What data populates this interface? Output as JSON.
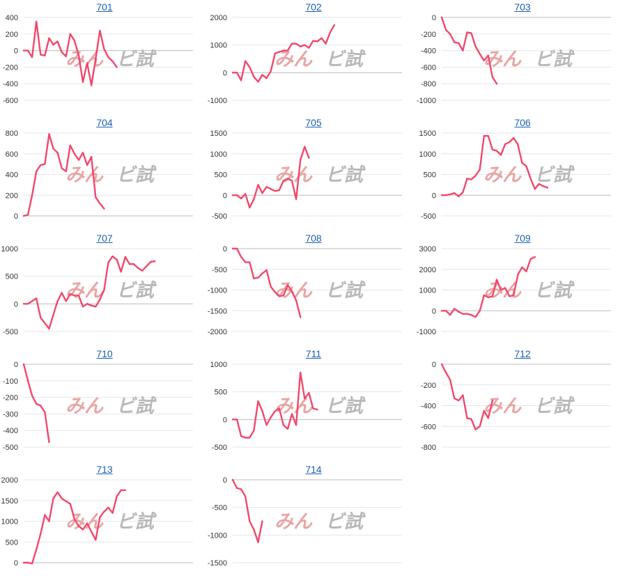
{
  "watermark": {
    "part1": "みん",
    "part2": "ビ試"
  },
  "colors": {
    "line": "#f2476a",
    "title": "#1a5fb4",
    "axis": "#bbbbbb",
    "grid": "#e6e6e6"
  },
  "chart_data": [
    {
      "title": "701",
      "type": "line",
      "ylim": [
        -600,
        400
      ],
      "yticks": [
        400,
        200,
        0,
        -200,
        -400,
        -600
      ],
      "y": [
        0,
        0,
        -80,
        350,
        -50,
        -60,
        150,
        70,
        110,
        -20,
        -70,
        200,
        120,
        -60,
        -380,
        -150,
        -420,
        -100,
        240,
        20,
        -80,
        -130,
        -200
      ]
    },
    {
      "title": "702",
      "type": "line",
      "ylim": [
        -1000,
        2000
      ],
      "yticks": [
        2000,
        1000,
        0,
        -1000
      ],
      "y": [
        0,
        0,
        -280,
        420,
        200,
        -150,
        -330,
        -80,
        -200,
        50,
        700,
        750,
        800,
        800,
        1050,
        1050,
        950,
        1000,
        900,
        1150,
        1130,
        1250,
        1050,
        1450,
        1720
      ]
    },
    {
      "title": "703",
      "type": "line",
      "ylim": [
        -1000,
        0
      ],
      "yticks": [
        0,
        -200,
        -400,
        -600,
        -800,
        -1000
      ],
      "y": [
        0,
        -150,
        -200,
        -300,
        -310,
        -400,
        -180,
        -190,
        -350,
        -440,
        -520,
        -460,
        -720,
        -800
      ]
    },
    {
      "title": "704",
      "type": "line",
      "ylim": [
        0,
        800
      ],
      "yticks": [
        800,
        600,
        400,
        200,
        0
      ],
      "y": [
        0,
        10,
        200,
        430,
        490,
        500,
        790,
        650,
        610,
        460,
        430,
        680,
        600,
        540,
        610,
        490,
        570,
        180,
        120,
        70
      ]
    },
    {
      "title": "705",
      "type": "line",
      "ylim": [
        -500,
        1500
      ],
      "yticks": [
        1500,
        1000,
        500,
        0,
        -500
      ],
      "y": [
        0,
        0,
        -80,
        30,
        -300,
        -100,
        250,
        50,
        200,
        150,
        100,
        120,
        350,
        400,
        350,
        -100,
        850,
        1170,
        900
      ]
    },
    {
      "title": "706",
      "type": "line",
      "ylim": [
        -500,
        1500
      ],
      "yticks": [
        1500,
        1000,
        500,
        0,
        -500
      ],
      "y": [
        0,
        0,
        20,
        50,
        -30,
        70,
        400,
        380,
        470,
        620,
        1430,
        1430,
        1100,
        1070,
        970,
        1230,
        1280,
        1380,
        1220,
        780,
        700,
        400,
        150,
        270,
        220,
        180
      ]
    },
    {
      "title": "707",
      "type": "line",
      "ylim": [
        -500,
        1000
      ],
      "yticks": [
        1000,
        500,
        0,
        -500
      ],
      "y": [
        0,
        0,
        50,
        100,
        -250,
        -350,
        -450,
        -200,
        50,
        200,
        50,
        180,
        150,
        150,
        -50,
        0,
        -30,
        -50,
        80,
        250,
        750,
        860,
        800,
        580,
        850,
        720,
        720,
        650,
        600,
        680,
        760,
        770
      ]
    },
    {
      "title": "708",
      "type": "line",
      "ylim": [
        -2000,
        0
      ],
      "yticks": [
        0,
        -500,
        -1000,
        -1500,
        -2000
      ],
      "y": [
        0,
        0,
        -200,
        -330,
        -330,
        -720,
        -700,
        -600,
        -520,
        -920,
        -1050,
        -1150,
        -1130,
        -880,
        -1030,
        -1250,
        -1650
      ]
    },
    {
      "title": "709",
      "type": "line",
      "ylim": [
        -1000,
        3000
      ],
      "yticks": [
        3000,
        2000,
        1000,
        0,
        -1000
      ],
      "y": [
        0,
        0,
        -200,
        100,
        -50,
        -150,
        -150,
        -200,
        -300,
        0,
        750,
        650,
        700,
        1500,
        1000,
        1100,
        700,
        750,
        1750,
        2100,
        1900,
        2500,
        2600
      ]
    },
    {
      "title": "710",
      "type": "line",
      "ylim": [
        -500,
        0
      ],
      "yticks": [
        0,
        -100,
        -200,
        -300,
        -400,
        -500
      ],
      "y": [
        0,
        -100,
        -190,
        -240,
        -250,
        -290,
        -470
      ]
    },
    {
      "title": "711",
      "type": "line",
      "ylim": [
        -500,
        1000
      ],
      "yticks": [
        1000,
        500,
        0,
        -500
      ],
      "y": [
        0,
        0,
        -300,
        -330,
        -330,
        -200,
        330,
        150,
        -100,
        40,
        150,
        200,
        -100,
        -170,
        100,
        -100,
        850,
        380,
        480,
        200,
        180
      ]
    },
    {
      "title": "712",
      "type": "line",
      "ylim": [
        -800,
        0
      ],
      "yticks": [
        0,
        -200,
        -400,
        -600,
        -800
      ],
      "y": [
        0,
        -80,
        -150,
        -330,
        -350,
        -300,
        -520,
        -530,
        -630,
        -600,
        -450,
        -520,
        -350
      ]
    },
    {
      "title": "713",
      "type": "line",
      "ylim": [
        0,
        2000
      ],
      "yticks": [
        2000,
        1500,
        1000,
        500,
        0
      ],
      "y": [
        0,
        0,
        -20,
        320,
        700,
        1150,
        1000,
        1550,
        1700,
        1550,
        1480,
        1420,
        1050,
        880,
        800,
        950,
        750,
        550,
        1100,
        1230,
        1330,
        1200,
        1600,
        1750,
        1750
      ]
    },
    {
      "title": "714",
      "type": "line",
      "ylim": [
        -1500,
        0
      ],
      "yticks": [
        0,
        -500,
        -1000,
        -1500
      ],
      "y": [
        0,
        -150,
        -170,
        -300,
        -750,
        -900,
        -1130,
        -750
      ]
    }
  ]
}
